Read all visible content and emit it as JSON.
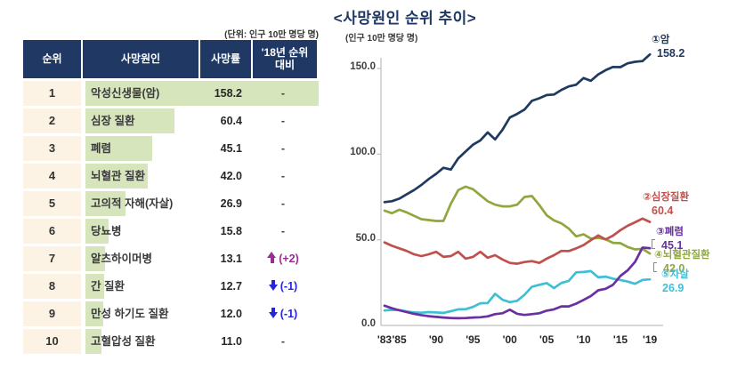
{
  "page": {
    "title": "<사망원인 순위 추이>",
    "table_unit_note": "(단위: 인구 10만 명당 명)"
  },
  "table": {
    "headers": {
      "rank": "순위",
      "cause": "사망원인",
      "rate": "사망률",
      "change": "'18년 순위\n대비"
    },
    "max_rate": 158.2,
    "rows": [
      {
        "rank": "1",
        "cause": "악성신생물(암)",
        "rate": "158.2",
        "change": "-",
        "direction": "none"
      },
      {
        "rank": "2",
        "cause": "심장 질환",
        "rate": "60.4",
        "change": "-",
        "direction": "none"
      },
      {
        "rank": "3",
        "cause": "폐렴",
        "rate": "45.1",
        "change": "-",
        "direction": "none"
      },
      {
        "rank": "4",
        "cause": "뇌혈관 질환",
        "rate": "42.0",
        "change": "-",
        "direction": "none"
      },
      {
        "rank": "5",
        "cause": "고의적 자해(자살)",
        "rate": "26.9",
        "change": "-",
        "direction": "none"
      },
      {
        "rank": "6",
        "cause": "당뇨병",
        "rate": "15.8",
        "change": "-",
        "direction": "none"
      },
      {
        "rank": "7",
        "cause": "알츠하이머병",
        "rate": "13.1",
        "change": "(+2)",
        "direction": "up"
      },
      {
        "rank": "8",
        "cause": "간 질환",
        "rate": "12.7",
        "change": "(-1)",
        "direction": "down"
      },
      {
        "rank": "9",
        "cause": "만성 하기도 질환",
        "rate": "12.0",
        "change": "(-1)",
        "direction": "down"
      },
      {
        "rank": "10",
        "cause": "고혈압성 질환",
        "rate": "11.0",
        "change": "-",
        "direction": "none"
      }
    ]
  },
  "chart_data": {
    "type": "line",
    "title": "<사망원인 순위 추이>",
    "ylabel": "(인구 10만 명당 명)",
    "ylim": [
      0,
      160
    ],
    "grid": false,
    "legend_position": "end-of-line labels",
    "y_ticks": [
      {
        "value": 0,
        "label": "0.0"
      },
      {
        "value": 50,
        "label": "50.0"
      },
      {
        "value": 100,
        "label": "100.0"
      },
      {
        "value": 150,
        "label": "150.0"
      }
    ],
    "x_ticks": [
      {
        "year": 1983,
        "label": "'83"
      },
      {
        "year": 1985,
        "label": "'85"
      },
      {
        "year": 1990,
        "label": "'90"
      },
      {
        "year": 1995,
        "label": "'95"
      },
      {
        "year": 2000,
        "label": "'00"
      },
      {
        "year": 2005,
        "label": "'05"
      },
      {
        "year": 2010,
        "label": "'10"
      },
      {
        "year": 2015,
        "label": "'15"
      },
      {
        "year": 2019,
        "label": "'19"
      }
    ],
    "years": [
      1983,
      1984,
      1985,
      1986,
      1987,
      1988,
      1989,
      1990,
      1991,
      1992,
      1993,
      1994,
      1995,
      1996,
      1997,
      1998,
      1999,
      2000,
      2001,
      2002,
      2003,
      2004,
      2005,
      2006,
      2007,
      2008,
      2009,
      2010,
      2011,
      2012,
      2013,
      2014,
      2015,
      2016,
      2017,
      2018,
      2019
    ],
    "series": [
      {
        "name": "암",
        "annotation": "①암",
        "end_value_label": "158.2",
        "color": "#1f3a60",
        "values": [
          72,
          72.5,
          74,
          76.5,
          79,
          82,
          85.5,
          88.5,
          92,
          91,
          97.5,
          101.5,
          105.5,
          108,
          112.7,
          108.6,
          114.2,
          121.4,
          123.5,
          126,
          131.1,
          132.6,
          134.5,
          134.8,
          137.5,
          139.5,
          140.5,
          144.4,
          142.8,
          146.5,
          149,
          150.9,
          150.8,
          153,
          153.9,
          154.3,
          158.2
        ]
      },
      {
        "name": "심장질환",
        "annotation": "②심장질환",
        "end_value_label": "60.4",
        "color": "#c0504d",
        "values": [
          48.5,
          46.5,
          45,
          43.5,
          41.5,
          40.5,
          41.5,
          43,
          40,
          40.5,
          43,
          39,
          40,
          43,
          39.5,
          41,
          38.5,
          36.5,
          36,
          37,
          37.5,
          36.5,
          39,
          41,
          43.5,
          43.4,
          45,
          46.9,
          49.8,
          52.5,
          50.2,
          52.4,
          55.6,
          58.2,
          60.2,
          62.4,
          60.4
        ]
      },
      {
        "name": "폐렴",
        "annotation": "③폐렴",
        "end_value_label": "45.1",
        "color": "#6a2fa0",
        "values": [
          11.5,
          10,
          8.8,
          7.8,
          6.8,
          6,
          5.4,
          5,
          4.6,
          4.3,
          4.2,
          4.3,
          4.6,
          4.8,
          5.3,
          6.6,
          7.1,
          9.2,
          6.8,
          6.1,
          6.6,
          7.1,
          8.6,
          9.4,
          11.1,
          11.1,
          12.7,
          14.9,
          17.2,
          20.5,
          21.4,
          23.7,
          28.9,
          32.2,
          37.1,
          45.4,
          45.1
        ]
      },
      {
        "name": "뇌혈관질환",
        "annotation": "④뇌혈관질환",
        "end_value_label": "42.0",
        "color": "#90a73e",
        "values": [
          67,
          65.5,
          67.5,
          66,
          64,
          62,
          61.5,
          61,
          61,
          71,
          79,
          81,
          79.5,
          76,
          72.5,
          70.5,
          69.5,
          69.5,
          70.5,
          75,
          75.5,
          70.3,
          64.3,
          61.3,
          59.6,
          56.5,
          52,
          53.2,
          50.7,
          51.1,
          50.3,
          48.2,
          48,
          45.8,
          44.4,
          44.7,
          42
        ]
      },
      {
        "name": "자살",
        "annotation": "⑤자살",
        "end_value_label": "26.9",
        "color": "#3fbfd5",
        "values": [
          8.7,
          9.1,
          9,
          8.2,
          7.6,
          7.4,
          7.8,
          7.6,
          7.3,
          8.3,
          9.4,
          9.5,
          10.8,
          12.9,
          13.1,
          18.4,
          15,
          13.6,
          14.4,
          17.9,
          22.6,
          23.7,
          24.7,
          21.8,
          24.8,
          26,
          31,
          31.2,
          31.7,
          28.1,
          28.5,
          27.3,
          26.5,
          25.6,
          24.3,
          26.6,
          26.9
        ]
      }
    ]
  }
}
